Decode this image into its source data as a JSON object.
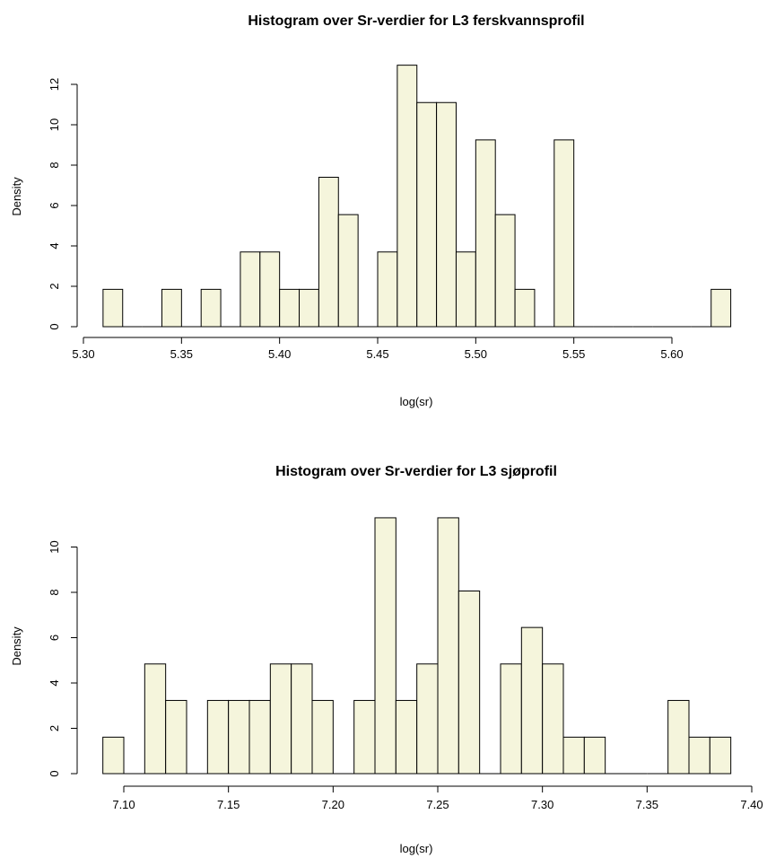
{
  "chart_data": [
    {
      "type": "bar",
      "histogram": true,
      "title": "Histogram over Sr-verdier for L3 ferskvannsprofil",
      "xlabel": "log(sr)",
      "ylabel": "Density",
      "bar_color": "#f5f5dc",
      "xlim": [
        5.3,
        5.63
      ],
      "ylim": [
        0,
        13
      ],
      "xticks": [
        5.3,
        5.35,
        5.4,
        5.45,
        5.5,
        5.55,
        5.6
      ],
      "xtick_labels": [
        "5.30",
        "5.35",
        "5.40",
        "5.45",
        "5.50",
        "5.55",
        "5.60"
      ],
      "yticks": [
        0,
        2,
        4,
        6,
        8,
        10,
        12
      ],
      "ytick_labels": [
        "0",
        "2",
        "4",
        "6",
        "8",
        "10",
        "12"
      ],
      "bins": [
        {
          "start": 5.31,
          "end": 5.32,
          "value": 1.85
        },
        {
          "start": 5.32,
          "end": 5.33,
          "value": 0
        },
        {
          "start": 5.33,
          "end": 5.34,
          "value": 0
        },
        {
          "start": 5.34,
          "end": 5.35,
          "value": 1.85
        },
        {
          "start": 5.35,
          "end": 5.36,
          "value": 0
        },
        {
          "start": 5.36,
          "end": 5.37,
          "value": 1.85
        },
        {
          "start": 5.37,
          "end": 5.38,
          "value": 0
        },
        {
          "start": 5.38,
          "end": 5.39,
          "value": 3.7
        },
        {
          "start": 5.39,
          "end": 5.4,
          "value": 3.7
        },
        {
          "start": 5.4,
          "end": 5.41,
          "value": 1.85
        },
        {
          "start": 5.41,
          "end": 5.42,
          "value": 1.85
        },
        {
          "start": 5.42,
          "end": 5.43,
          "value": 7.4
        },
        {
          "start": 5.43,
          "end": 5.44,
          "value": 5.55
        },
        {
          "start": 5.44,
          "end": 5.45,
          "value": 0
        },
        {
          "start": 5.45,
          "end": 5.46,
          "value": 3.7
        },
        {
          "start": 5.46,
          "end": 5.47,
          "value": 12.95
        },
        {
          "start": 5.47,
          "end": 5.48,
          "value": 11.1
        },
        {
          "start": 5.48,
          "end": 5.49,
          "value": 11.1
        },
        {
          "start": 5.49,
          "end": 5.5,
          "value": 3.7
        },
        {
          "start": 5.5,
          "end": 5.51,
          "value": 9.25
        },
        {
          "start": 5.51,
          "end": 5.52,
          "value": 5.55
        },
        {
          "start": 5.52,
          "end": 5.53,
          "value": 1.85
        },
        {
          "start": 5.53,
          "end": 5.54,
          "value": 0
        },
        {
          "start": 5.54,
          "end": 5.55,
          "value": 9.25
        },
        {
          "start": 5.55,
          "end": 5.56,
          "value": 0
        },
        {
          "start": 5.56,
          "end": 5.57,
          "value": 0
        },
        {
          "start": 5.57,
          "end": 5.58,
          "value": 0
        },
        {
          "start": 5.58,
          "end": 5.59,
          "value": 0
        },
        {
          "start": 5.59,
          "end": 5.6,
          "value": 0
        },
        {
          "start": 5.6,
          "end": 5.61,
          "value": 0
        },
        {
          "start": 5.61,
          "end": 5.62,
          "value": 0
        },
        {
          "start": 5.62,
          "end": 5.63,
          "value": 1.85
        }
      ]
    },
    {
      "type": "bar",
      "histogram": true,
      "title": "Histogram over Sr-verdier for L3 sjøprofil",
      "xlabel": "log(sr)",
      "ylabel": "Density",
      "bar_color": "#f5f5dc",
      "xlim": [
        7.08,
        7.4
      ],
      "ylim": [
        0,
        11.3
      ],
      "xticks": [
        7.1,
        7.15,
        7.2,
        7.25,
        7.3,
        7.35,
        7.4
      ],
      "xtick_labels": [
        "7.10",
        "7.15",
        "7.20",
        "7.25",
        "7.30",
        "7.35",
        "7.40"
      ],
      "yticks": [
        0,
        2,
        4,
        6,
        8,
        10
      ],
      "ytick_labels": [
        "0",
        "2",
        "4",
        "6",
        "8",
        "10"
      ],
      "bins": [
        {
          "start": 7.09,
          "end": 7.1,
          "value": 1.61
        },
        {
          "start": 7.1,
          "end": 7.11,
          "value": 0
        },
        {
          "start": 7.11,
          "end": 7.12,
          "value": 4.84
        },
        {
          "start": 7.12,
          "end": 7.13,
          "value": 3.23
        },
        {
          "start": 7.13,
          "end": 7.14,
          "value": 0
        },
        {
          "start": 7.14,
          "end": 7.15,
          "value": 3.23
        },
        {
          "start": 7.15,
          "end": 7.16,
          "value": 3.23
        },
        {
          "start": 7.16,
          "end": 7.17,
          "value": 3.23
        },
        {
          "start": 7.17,
          "end": 7.18,
          "value": 4.84
        },
        {
          "start": 7.18,
          "end": 7.19,
          "value": 4.84
        },
        {
          "start": 7.19,
          "end": 7.2,
          "value": 3.23
        },
        {
          "start": 7.2,
          "end": 7.21,
          "value": 0
        },
        {
          "start": 7.21,
          "end": 7.22,
          "value": 3.23
        },
        {
          "start": 7.22,
          "end": 7.23,
          "value": 11.29
        },
        {
          "start": 7.23,
          "end": 7.24,
          "value": 3.23
        },
        {
          "start": 7.24,
          "end": 7.25,
          "value": 4.84
        },
        {
          "start": 7.25,
          "end": 7.26,
          "value": 11.29
        },
        {
          "start": 7.26,
          "end": 7.27,
          "value": 8.06
        },
        {
          "start": 7.27,
          "end": 7.28,
          "value": 0
        },
        {
          "start": 7.28,
          "end": 7.29,
          "value": 4.84
        },
        {
          "start": 7.29,
          "end": 7.3,
          "value": 6.45
        },
        {
          "start": 7.3,
          "end": 7.31,
          "value": 4.84
        },
        {
          "start": 7.31,
          "end": 7.32,
          "value": 1.61
        },
        {
          "start": 7.32,
          "end": 7.33,
          "value": 1.61
        },
        {
          "start": 7.33,
          "end": 7.34,
          "value": 0
        },
        {
          "start": 7.34,
          "end": 7.35,
          "value": 0
        },
        {
          "start": 7.35,
          "end": 7.36,
          "value": 0
        },
        {
          "start": 7.36,
          "end": 7.37,
          "value": 3.23
        },
        {
          "start": 7.37,
          "end": 7.38,
          "value": 1.61
        },
        {
          "start": 7.38,
          "end": 7.39,
          "value": 1.61
        }
      ]
    }
  ]
}
